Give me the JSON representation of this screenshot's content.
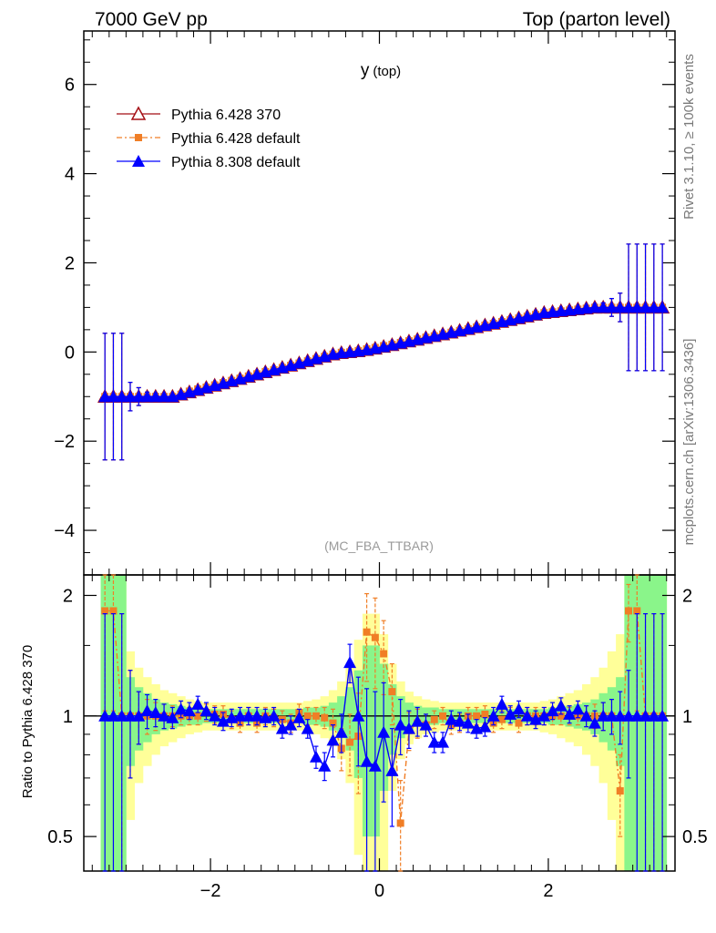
{
  "header": {
    "energy": "7000 GeV pp",
    "process": "Top (parton level)"
  },
  "side_labels": {
    "rivet": "Rivet 3.1.10, ≥ 100k events",
    "source": "mcplots.cern.ch [arXiv:1306.3436]"
  },
  "chart_data": [
    {
      "type": "line",
      "panel": "main",
      "title": "y",
      "title_suffix": "(top)",
      "watermark": "(MC_FBA_TTBAR)",
      "xlim": [
        -3.5,
        3.5
      ],
      "ylim": [
        -5.0,
        7.2
      ],
      "yticks": [
        "−4",
        "−2",
        "0",
        "2",
        "4",
        "6"
      ],
      "ytick_values": [
        -4,
        -2,
        0,
        2,
        4,
        6
      ],
      "grid": false,
      "legend_position": "top-left",
      "x": [
        -3.25,
        -3.15,
        -3.05,
        -2.95,
        -2.85,
        -2.75,
        -2.65,
        -2.55,
        -2.45,
        -2.35,
        -2.25,
        -2.15,
        -2.05,
        -1.95,
        -1.85,
        -1.75,
        -1.65,
        -1.55,
        -1.45,
        -1.35,
        -1.25,
        -1.15,
        -1.05,
        -0.95,
        -0.85,
        -0.75,
        -0.65,
        -0.55,
        -0.45,
        -0.35,
        -0.25,
        -0.15,
        -0.05,
        0.05,
        0.15,
        0.25,
        0.35,
        0.45,
        0.55,
        0.65,
        0.75,
        0.85,
        0.95,
        1.05,
        1.15,
        1.25,
        1.35,
        1.45,
        1.55,
        1.65,
        1.75,
        1.85,
        1.95,
        2.05,
        2.15,
        2.25,
        2.35,
        2.45,
        2.55,
        2.65,
        2.75,
        2.85,
        2.95,
        3.05,
        3.15,
        3.25,
        3.35
      ],
      "series": [
        {
          "name": "Pythia 6.428 370",
          "color": "#a50f15",
          "marker": "open-triangle",
          "line": "solid",
          "values": [
            -1.0,
            -1.0,
            -1.0,
            -1.0,
            -1.0,
            -1.0,
            -1.0,
            -1.0,
            -1.0,
            -0.95,
            -0.9,
            -0.85,
            -0.8,
            -0.75,
            -0.7,
            -0.65,
            -0.6,
            -0.55,
            -0.5,
            -0.45,
            -0.4,
            -0.35,
            -0.3,
            -0.25,
            -0.2,
            -0.15,
            -0.1,
            -0.05,
            -0.02,
            0.0,
            0.02,
            0.05,
            0.08,
            0.12,
            0.16,
            0.2,
            0.24,
            0.28,
            0.32,
            0.36,
            0.4,
            0.44,
            0.48,
            0.52,
            0.56,
            0.6,
            0.64,
            0.68,
            0.72,
            0.76,
            0.8,
            0.84,
            0.88,
            0.9,
            0.92,
            0.94,
            0.96,
            0.98,
            1.0,
            1.0,
            1.0,
            1.0,
            1.0,
            1.0,
            1.0,
            1.0,
            1.0
          ],
          "errors": [
            1.42,
            1.42,
            1.42,
            0.32,
            0.2,
            0.1,
            0.07,
            0.06,
            0.05,
            0.05,
            0.04,
            0.04,
            0.04,
            0.04,
            0.04,
            0.03,
            0.03,
            0.03,
            0.03,
            0.03,
            0.03,
            0.03,
            0.03,
            0.03,
            0.03,
            0.03,
            0.03,
            0.03,
            0.03,
            0.03,
            0.03,
            0.03,
            0.03,
            0.03,
            0.03,
            0.03,
            0.03,
            0.03,
            0.03,
            0.03,
            0.03,
            0.03,
            0.03,
            0.03,
            0.03,
            0.03,
            0.03,
            0.03,
            0.03,
            0.03,
            0.04,
            0.04,
            0.04,
            0.04,
            0.04,
            0.05,
            0.05,
            0.06,
            0.07,
            0.1,
            0.2,
            0.32,
            1.42,
            1.42,
            1.42,
            1.42,
            1.42
          ]
        },
        {
          "name": "Pythia 6.428 default",
          "color": "#f07e26",
          "marker": "square",
          "line": "dash-dot",
          "values": [
            -1.0,
            -1.0,
            -1.0,
            -1.0,
            -1.0,
            -1.0,
            -1.0,
            -1.0,
            -1.0,
            -0.95,
            -0.88,
            -0.83,
            -0.79,
            -0.74,
            -0.69,
            -0.64,
            -0.59,
            -0.54,
            -0.49,
            -0.44,
            -0.4,
            -0.35,
            -0.3,
            -0.25,
            -0.2,
            -0.15,
            -0.1,
            -0.05,
            -0.01,
            0.0,
            0.03,
            0.07,
            0.1,
            0.14,
            0.17,
            0.21,
            0.25,
            0.29,
            0.33,
            0.36,
            0.4,
            0.44,
            0.48,
            0.52,
            0.56,
            0.6,
            0.64,
            0.68,
            0.72,
            0.76,
            0.8,
            0.84,
            0.88,
            0.9,
            0.92,
            0.94,
            0.96,
            0.98,
            1.0,
            1.0,
            1.0,
            1.0,
            1.0,
            1.0,
            1.0,
            1.0,
            1.0
          ],
          "errors": [
            1.42,
            1.42,
            1.42,
            0.32,
            0.2,
            0.1,
            0.07,
            0.06,
            0.05,
            0.05,
            0.04,
            0.04,
            0.04,
            0.04,
            0.04,
            0.03,
            0.03,
            0.03,
            0.03,
            0.03,
            0.03,
            0.03,
            0.03,
            0.03,
            0.03,
            0.03,
            0.03,
            0.03,
            0.03,
            0.03,
            0.03,
            0.03,
            0.03,
            0.03,
            0.03,
            0.03,
            0.03,
            0.03,
            0.03,
            0.03,
            0.03,
            0.03,
            0.03,
            0.03,
            0.03,
            0.03,
            0.03,
            0.03,
            0.03,
            0.03,
            0.04,
            0.04,
            0.04,
            0.04,
            0.04,
            0.05,
            0.05,
            0.06,
            0.07,
            0.1,
            0.2,
            0.32,
            1.42,
            1.42,
            1.42,
            1.42,
            1.42
          ]
        },
        {
          "name": "Pythia 8.308 default",
          "color": "#0000ff",
          "marker": "filled-triangle",
          "line": "solid",
          "values": [
            -1.0,
            -1.0,
            -1.0,
            -1.0,
            -1.0,
            -1.0,
            -1.0,
            -1.0,
            -1.0,
            -0.95,
            -0.9,
            -0.85,
            -0.8,
            -0.75,
            -0.7,
            -0.65,
            -0.6,
            -0.55,
            -0.5,
            -0.45,
            -0.4,
            -0.35,
            -0.3,
            -0.25,
            -0.2,
            -0.15,
            -0.1,
            -0.05,
            -0.02,
            0.0,
            0.02,
            0.05,
            0.08,
            0.12,
            0.16,
            0.2,
            0.24,
            0.28,
            0.32,
            0.36,
            0.4,
            0.44,
            0.48,
            0.52,
            0.56,
            0.6,
            0.64,
            0.68,
            0.72,
            0.76,
            0.8,
            0.84,
            0.88,
            0.9,
            0.92,
            0.94,
            0.96,
            0.98,
            1.0,
            1.0,
            1.0,
            1.0,
            1.0,
            1.0,
            1.0,
            1.0,
            1.0
          ],
          "errors": [
            1.42,
            1.42,
            1.42,
            0.32,
            0.2,
            0.1,
            0.07,
            0.06,
            0.05,
            0.05,
            0.04,
            0.04,
            0.04,
            0.04,
            0.04,
            0.03,
            0.03,
            0.03,
            0.03,
            0.03,
            0.03,
            0.03,
            0.03,
            0.03,
            0.03,
            0.03,
            0.03,
            0.03,
            0.03,
            0.03,
            0.03,
            0.03,
            0.03,
            0.03,
            0.03,
            0.03,
            0.03,
            0.03,
            0.03,
            0.03,
            0.03,
            0.03,
            0.03,
            0.03,
            0.03,
            0.03,
            0.03,
            0.03,
            0.03,
            0.03,
            0.04,
            0.04,
            0.04,
            0.04,
            0.04,
            0.05,
            0.05,
            0.06,
            0.07,
            0.1,
            0.2,
            0.32,
            1.42,
            1.42,
            1.42,
            1.42,
            1.42
          ]
        }
      ]
    },
    {
      "type": "line",
      "panel": "ratio",
      "ylabel": "Ratio to Pythia 6.428 370",
      "xlim": [
        -3.5,
        3.5
      ],
      "ylim": [
        0.5,
        1.55
      ],
      "yscale": "log",
      "yticks_left": [
        "0.5",
        "1",
        "2"
      ],
      "yticks_right": [
        "0.5",
        "1",
        "2"
      ],
      "ytick_values": [
        0.5,
        1,
        2
      ],
      "xticks": [
        "−2",
        "0",
        "2"
      ],
      "xtick_values": [
        -2,
        0,
        2
      ],
      "reference_line": 1,
      "band_colors": {
        "inner": "#8af58a",
        "outer": "#ffff99"
      },
      "x": [
        -3.25,
        -3.15,
        -3.05,
        -2.95,
        -2.85,
        -2.75,
        -2.65,
        -2.55,
        -2.45,
        -2.35,
        -2.25,
        -2.15,
        -2.05,
        -1.95,
        -1.85,
        -1.75,
        -1.65,
        -1.55,
        -1.45,
        -1.35,
        -1.25,
        -1.15,
        -1.05,
        -0.95,
        -0.85,
        -0.75,
        -0.65,
        -0.55,
        -0.45,
        -0.35,
        -0.25,
        -0.15,
        -0.05,
        0.05,
        0.15,
        0.25,
        0.35,
        0.45,
        0.55,
        0.65,
        0.75,
        0.85,
        0.95,
        1.05,
        1.15,
        1.25,
        1.35,
        1.45,
        1.55,
        1.65,
        1.75,
        1.85,
        1.95,
        2.05,
        2.15,
        2.25,
        2.35,
        2.45,
        2.55,
        2.65,
        2.75,
        2.85,
        2.95,
        3.05,
        3.15,
        3.25,
        3.35
      ],
      "band_inner": [
        1.5,
        1.5,
        1.5,
        0.25,
        0.18,
        0.14,
        0.1,
        0.08,
        0.07,
        0.06,
        0.05,
        0.05,
        0.04,
        0.04,
        0.04,
        0.04,
        0.04,
        0.04,
        0.04,
        0.04,
        0.04,
        0.04,
        0.04,
        0.04,
        0.05,
        0.05,
        0.06,
        0.08,
        0.12,
        0.18,
        0.3,
        0.5,
        0.5,
        0.35,
        0.2,
        0.12,
        0.08,
        0.06,
        0.05,
        0.05,
        0.04,
        0.04,
        0.04,
        0.04,
        0.04,
        0.04,
        0.04,
        0.04,
        0.04,
        0.04,
        0.04,
        0.04,
        0.04,
        0.05,
        0.05,
        0.06,
        0.07,
        0.08,
        0.1,
        0.14,
        0.18,
        0.25,
        1.5,
        1.5,
        1.5,
        1.5,
        1.5
      ],
      "band_outer": [
        1.5,
        1.5,
        1.5,
        0.45,
        0.32,
        0.25,
        0.2,
        0.16,
        0.14,
        0.12,
        0.1,
        0.09,
        0.08,
        0.08,
        0.08,
        0.08,
        0.08,
        0.08,
        0.08,
        0.08,
        0.08,
        0.08,
        0.08,
        0.08,
        0.09,
        0.1,
        0.12,
        0.16,
        0.22,
        0.32,
        0.55,
        0.8,
        0.8,
        0.6,
        0.35,
        0.22,
        0.15,
        0.12,
        0.1,
        0.09,
        0.08,
        0.08,
        0.08,
        0.08,
        0.08,
        0.08,
        0.08,
        0.08,
        0.08,
        0.08,
        0.08,
        0.08,
        0.09,
        0.1,
        0.12,
        0.14,
        0.16,
        0.2,
        0.25,
        0.32,
        0.45,
        0.6,
        1.5,
        1.5,
        1.5,
        1.5,
        1.5
      ],
      "series": [
        {
          "name": "Pythia 6.428 default",
          "color": "#f07e26",
          "marker": "square",
          "line": "dash-dot",
          "values": [
            1.83,
            1.83,
            1.0,
            1.0,
            1.0,
            1.0,
            1.0,
            1.0,
            1.0,
            1.0,
            1.0,
            1.0,
            1.02,
            1.01,
            1.01,
            0.98,
            0.96,
            1.0,
            0.96,
            1.0,
            0.99,
            0.98,
            0.96,
            1.02,
            1.0,
            1.0,
            0.99,
            0.96,
            0.83,
            0.86,
            0.89,
            1.62,
            1.57,
            1.43,
            1.15,
            0.54,
            0.92,
            0.96,
            0.95,
            0.98,
            1.0,
            0.95,
            0.96,
            1.0,
            1.0,
            1.01,
            0.96,
            0.98,
            1.0,
            0.96,
            1.0,
            1.0,
            1.0,
            1.0,
            1.0,
            1.0,
            1.0,
            1.0,
            1.0,
            1.0,
            1.0,
            0.65,
            1.83,
            1.83,
            1.0,
            1.0,
            1.0
          ],
          "errors": [
            0.8,
            0.8,
            0.8,
            0.3,
            0.15,
            0.1,
            0.08,
            0.07,
            0.06,
            0.05,
            0.05,
            0.05,
            0.05,
            0.05,
            0.05,
            0.05,
            0.05,
            0.05,
            0.05,
            0.05,
            0.05,
            0.05,
            0.05,
            0.05,
            0.05,
            0.05,
            0.06,
            0.08,
            0.1,
            0.15,
            0.25,
            0.4,
            0.4,
            0.3,
            0.2,
            0.15,
            0.1,
            0.08,
            0.06,
            0.05,
            0.05,
            0.05,
            0.05,
            0.05,
            0.05,
            0.05,
            0.05,
            0.05,
            0.05,
            0.05,
            0.05,
            0.05,
            0.05,
            0.05,
            0.05,
            0.05,
            0.05,
            0.06,
            0.07,
            0.08,
            0.1,
            0.15,
            0.3,
            0.8,
            0.8,
            0.8,
            0.8
          ]
        },
        {
          "name": "Pythia 8.308 default",
          "color": "#0000ff",
          "marker": "filled-triangle",
          "line": "solid",
          "values": [
            1.0,
            1.0,
            1.0,
            1.0,
            1.0,
            1.03,
            1.02,
            1.0,
            0.99,
            1.04,
            1.03,
            1.07,
            1.03,
            1.0,
            0.97,
            0.99,
            1.0,
            1.0,
            1.0,
            0.99,
            1.0,
            0.93,
            0.95,
            0.99,
            0.93,
            0.79,
            0.75,
            0.87,
            0.91,
            1.36,
            1.0,
            0.77,
            0.75,
            0.91,
            0.73,
            0.95,
            0.93,
            0.97,
            0.95,
            0.86,
            0.86,
            0.98,
            0.97,
            0.96,
            0.93,
            0.94,
            1.0,
            1.07,
            1.01,
            1.04,
            1.0,
            0.98,
            1.0,
            1.03,
            1.06,
            1.01,
            1.04,
            1.0,
            0.96,
            1.0,
            1.0,
            1.0,
            1.0,
            1.0,
            1.0,
            1.0,
            1.0
          ],
          "errors": [
            0.8,
            0.8,
            0.8,
            0.3,
            0.15,
            0.1,
            0.08,
            0.07,
            0.06,
            0.05,
            0.05,
            0.05,
            0.05,
            0.05,
            0.05,
            0.05,
            0.05,
            0.05,
            0.05,
            0.05,
            0.05,
            0.05,
            0.05,
            0.05,
            0.05,
            0.05,
            0.06,
            0.08,
            0.1,
            0.15,
            0.25,
            0.4,
            0.4,
            0.3,
            0.2,
            0.15,
            0.1,
            0.08,
            0.06,
            0.05,
            0.05,
            0.05,
            0.05,
            0.05,
            0.05,
            0.05,
            0.05,
            0.05,
            0.05,
            0.05,
            0.05,
            0.05,
            0.05,
            0.05,
            0.05,
            0.05,
            0.05,
            0.06,
            0.07,
            0.08,
            0.1,
            0.15,
            0.3,
            0.8,
            0.8,
            0.8,
            0.8
          ]
        }
      ]
    }
  ]
}
